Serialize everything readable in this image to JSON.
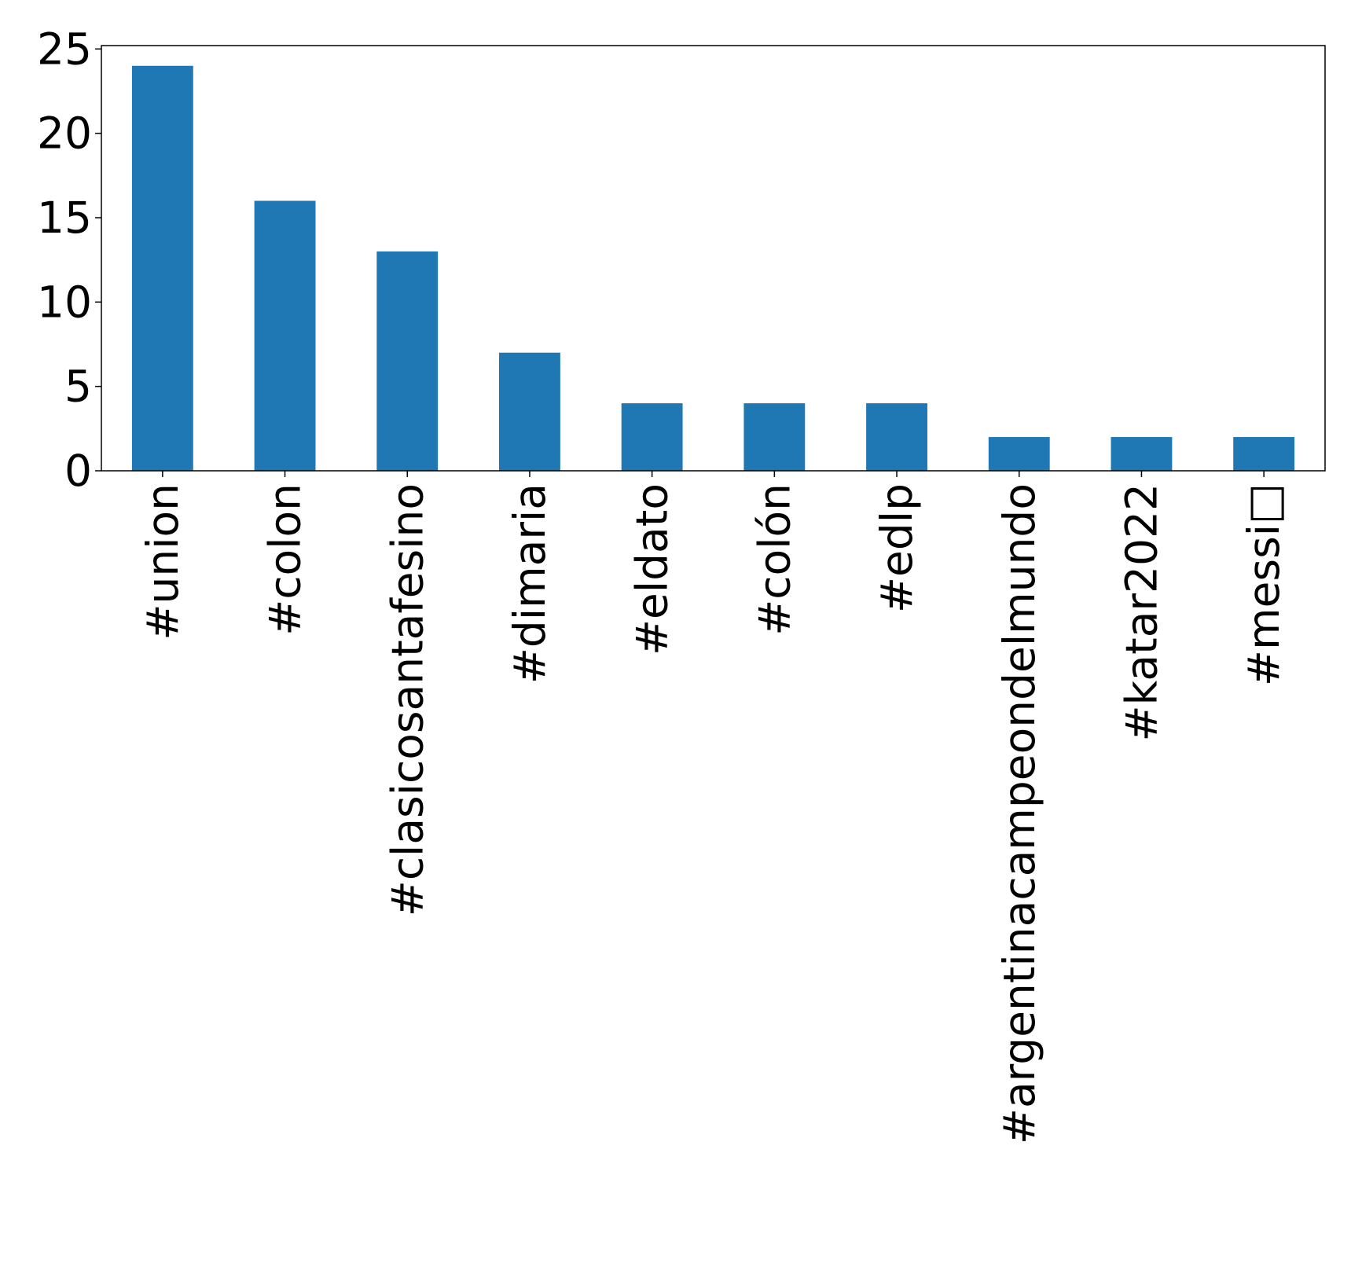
{
  "chart_data": {
    "type": "bar",
    "title": "",
    "xlabel": "",
    "ylabel": "",
    "categories": [
      "#union",
      "#colon",
      "#clasicosantafesino",
      "#dimaria",
      "#eldato",
      "#colón",
      "#edlp",
      "#argentinacampeondelmundo",
      "#katar2022",
      "#messi□"
    ],
    "values": [
      24,
      16,
      13,
      7,
      4,
      4,
      4,
      2,
      2,
      2
    ],
    "ylim": [
      0,
      25.2
    ],
    "yticks": [
      0,
      5,
      10,
      15,
      20,
      25
    ],
    "bar_color": "#1f77b4",
    "grid": false,
    "legend": "none"
  }
}
